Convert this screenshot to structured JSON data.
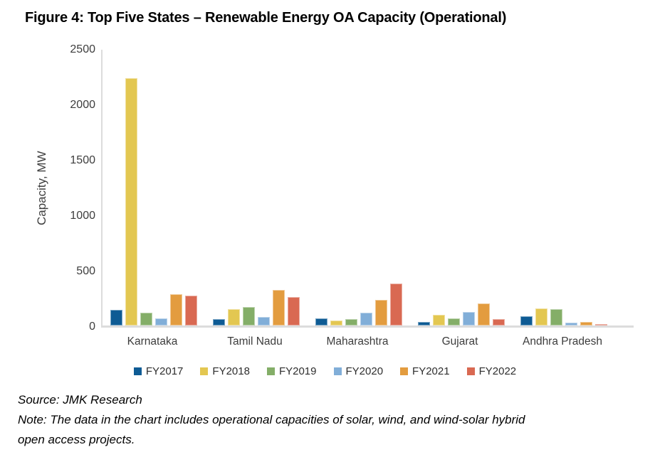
{
  "chart_data": {
    "type": "bar",
    "title": "Figure 4: Top Five States – Renewable Energy OA Capacity (Operational)",
    "xlabel": "",
    "ylabel": "Capacity, MW",
    "ylim": [
      0,
      2500
    ],
    "yticks": [
      0,
      500,
      1000,
      1500,
      2000,
      2500
    ],
    "grid": false,
    "legend_position": "bottom",
    "categories": [
      "Karnataka",
      "Tamil Nadu",
      "Maharashtra",
      "Gujarat",
      "Andhra Pradesh"
    ],
    "series": [
      {
        "name": "FY2017",
        "color": "#0E5B94",
        "values": [
          140,
          55,
          65,
          30,
          85
        ]
      },
      {
        "name": "FY2018",
        "color": "#E3C751",
        "values": [
          2245,
          145,
          45,
          95,
          155
        ]
      },
      {
        "name": "FY2019",
        "color": "#84AE68",
        "values": [
          115,
          165,
          55,
          65,
          145
        ]
      },
      {
        "name": "FY2020",
        "color": "#81AED8",
        "values": [
          65,
          80,
          115,
          120,
          25
        ]
      },
      {
        "name": "FY2021",
        "color": "#E39C3F",
        "values": [
          285,
          320,
          230,
          200,
          30
        ]
      },
      {
        "name": "FY2022",
        "color": "#D96952",
        "values": [
          270,
          260,
          380,
          60,
          10
        ]
      }
    ],
    "units": "MW"
  },
  "colors": {
    "axis_line": "#DCDCDC",
    "tick_text": "#3d3d3d",
    "title_text": "#000000"
  },
  "footer": {
    "source": "Source: JMK Research",
    "note_lines": [
      "Note: The data in the chart includes operational capacities of solar, wind, and wind-solar hybrid",
      "open access projects."
    ]
  }
}
